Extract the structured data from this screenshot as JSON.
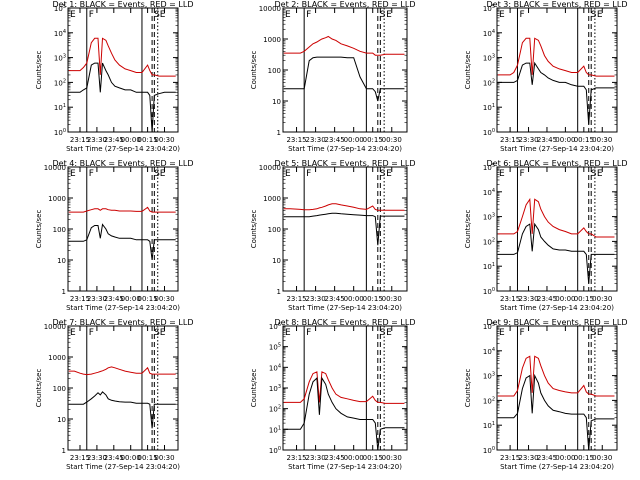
{
  "figure": {
    "x_axis_label": "Start Time (27-Sep-14 23:04:20)",
    "y_axis_label": "Counts/sec",
    "event_marks": [
      {
        "label": "E",
        "t": "23:04:20",
        "style": "solid"
      },
      {
        "label": "F",
        "t": "23:21",
        "style": "solid"
      },
      {
        "label": "",
        "t": "00:10",
        "style": "solid"
      },
      {
        "label": "S",
        "t": "00:19",
        "style": "dashed"
      },
      {
        "label": "",
        "t": "00:21",
        "style": "dashed"
      },
      {
        "label": "E",
        "t": "00:24",
        "style": "dotted"
      }
    ],
    "colors": {
      "events": "#000000",
      "lld": "#cc0000"
    }
  },
  "chart_data": [
    {
      "type": "line",
      "title": "Det 1: BLACK = Events, RED = LLD",
      "yscale": "log",
      "ylim": [
        1,
        100000
      ],
      "ytick_labels": [
        "10^0",
        "10^1",
        "10^2",
        "10^3",
        "10^4",
        "10^5"
      ],
      "xtick_labels": [
        "23:15",
        "23:30",
        "23:45",
        "00:00",
        "00:15",
        "00:30"
      ],
      "x": [
        "23:05",
        "23:10",
        "23:15",
        "23:18",
        "23:21",
        "23:25",
        "23:28",
        "23:31",
        "23:33",
        "23:35",
        "23:38",
        "23:40",
        "23:43",
        "23:46",
        "23:50",
        "23:55",
        "00:00",
        "00:05",
        "00:10",
        "00:15",
        "00:17",
        "00:19",
        "00:21",
        "00:25",
        "00:30",
        "00:40"
      ],
      "series": [
        {
          "name": "LLD",
          "values": [
            300,
            300,
            300,
            400,
            600,
            4000,
            6000,
            6000,
            200,
            6000,
            5000,
            3000,
            1500,
            800,
            500,
            350,
            300,
            250,
            250,
            500,
            300,
            200,
            200,
            180,
            180,
            180
          ]
        },
        {
          "name": "Events",
          "values": [
            40,
            40,
            40,
            50,
            60,
            500,
            600,
            600,
            40,
            600,
            300,
            200,
            100,
            70,
            60,
            50,
            50,
            40,
            40,
            40,
            30,
            1,
            30,
            35,
            40,
            40
          ]
        }
      ]
    },
    {
      "type": "line",
      "title": "Det 2: BLACK = Events, RED = LLD",
      "yscale": "log",
      "ylim": [
        1,
        10000
      ],
      "ytick_labels": [
        "1",
        "10",
        "100",
        "1000",
        "10000"
      ],
      "xtick_labels": [
        "23:15",
        "23:30",
        "23:45",
        "00:00",
        "00:15",
        "00:30"
      ],
      "x": [
        "23:05",
        "23:10",
        "23:15",
        "23:18",
        "23:21",
        "23:25",
        "23:28",
        "23:31",
        "23:33",
        "23:35",
        "23:38",
        "23:40",
        "23:43",
        "23:46",
        "23:50",
        "23:55",
        "00:00",
        "00:05",
        "00:10",
        "00:15",
        "00:17",
        "00:19",
        "00:21",
        "00:25",
        "00:30",
        "00:40"
      ],
      "series": [
        {
          "name": "LLD",
          "values": [
            350,
            350,
            350,
            350,
            400,
            550,
            700,
            800,
            900,
            1000,
            1100,
            1200,
            1000,
            900,
            700,
            600,
            500,
            400,
            350,
            350,
            300,
            300,
            300,
            320,
            320,
            320
          ]
        },
        {
          "name": "Events",
          "values": [
            25,
            25,
            25,
            25,
            25,
            200,
            250,
            260,
            260,
            260,
            260,
            260,
            260,
            260,
            260,
            250,
            250,
            60,
            25,
            25,
            20,
            10,
            25,
            25,
            25,
            25
          ]
        }
      ]
    },
    {
      "type": "line",
      "title": "Det 3: BLACK = Events, RED = LLD",
      "yscale": "log",
      "ylim": [
        1,
        100000
      ],
      "ytick_labels": [
        "10^0",
        "10^1",
        "10^2",
        "10^3",
        "10^4",
        "10^5"
      ],
      "xtick_labels": [
        "23:15",
        "23:30",
        "23:45",
        "00:00",
        "00:15",
        "00:30"
      ],
      "x": [
        "23:05",
        "23:10",
        "23:15",
        "23:18",
        "23:21",
        "23:25",
        "23:28",
        "23:31",
        "23:33",
        "23:35",
        "23:38",
        "23:40",
        "23:43",
        "23:46",
        "23:50",
        "23:55",
        "00:00",
        "00:05",
        "00:10",
        "00:15",
        "00:17",
        "00:19",
        "00:21",
        "00:25",
        "00:30",
        "00:40"
      ],
      "series": [
        {
          "name": "LLD",
          "values": [
            200,
            200,
            200,
            250,
            500,
            4000,
            6000,
            6000,
            200,
            6000,
            5000,
            3000,
            1200,
            700,
            450,
            350,
            300,
            250,
            250,
            450,
            250,
            200,
            200,
            180,
            180,
            180
          ]
        },
        {
          "name": "Events",
          "values": [
            100,
            100,
            100,
            100,
            120,
            500,
            600,
            600,
            80,
            600,
            350,
            250,
            200,
            150,
            120,
            100,
            100,
            80,
            70,
            70,
            50,
            2,
            50,
            60,
            60,
            60
          ]
        }
      ]
    },
    {
      "type": "line",
      "title": "Det 4: BLACK = Events, RED = LLD",
      "yscale": "log",
      "ylim": [
        1,
        10000
      ],
      "ytick_labels": [
        "1",
        "10",
        "100",
        "1000",
        "10000"
      ],
      "xtick_labels": [
        "23:15",
        "23:30",
        "23:45",
        "00:00",
        "00:15",
        "00:30"
      ],
      "x": [
        "23:05",
        "23:10",
        "23:15",
        "23:18",
        "23:21",
        "23:25",
        "23:28",
        "23:31",
        "23:33",
        "23:35",
        "23:38",
        "23:40",
        "23:43",
        "23:46",
        "23:50",
        "23:55",
        "00:00",
        "00:05",
        "00:10",
        "00:15",
        "00:17",
        "00:19",
        "00:21",
        "00:25",
        "00:30",
        "00:40"
      ],
      "series": [
        {
          "name": "LLD",
          "values": [
            350,
            350,
            350,
            350,
            380,
            420,
            450,
            450,
            400,
            450,
            450,
            420,
            400,
            400,
            380,
            380,
            380,
            370,
            370,
            500,
            380,
            350,
            350,
            350,
            350,
            350
          ]
        },
        {
          "name": "Events",
          "values": [
            40,
            40,
            40,
            40,
            45,
            110,
            130,
            130,
            50,
            140,
            100,
            70,
            60,
            55,
            50,
            50,
            50,
            45,
            45,
            45,
            40,
            10,
            45,
            45,
            45,
            45
          ]
        }
      ]
    },
    {
      "type": "line",
      "title": "Det 5: BLACK = Events, RED = LLD",
      "yscale": "log",
      "ylim": [
        1,
        10000
      ],
      "ytick_labels": [
        "1",
        "10",
        "100",
        "1000",
        "10000"
      ],
      "xtick_labels": [
        "23:15",
        "23:30",
        "23:45",
        "00:00",
        "00:15",
        "00:30"
      ],
      "x": [
        "23:05",
        "23:10",
        "23:15",
        "23:18",
        "23:21",
        "23:25",
        "23:28",
        "23:31",
        "23:33",
        "23:35",
        "23:38",
        "23:40",
        "23:43",
        "23:46",
        "23:50",
        "23:55",
        "00:00",
        "00:05",
        "00:10",
        "00:15",
        "00:17",
        "00:19",
        "00:21",
        "00:25",
        "00:30",
        "00:40"
      ],
      "series": [
        {
          "name": "LLD",
          "values": [
            450,
            450,
            440,
            430,
            420,
            420,
            430,
            450,
            480,
            500,
            550,
            600,
            650,
            650,
            600,
            550,
            500,
            450,
            430,
            550,
            430,
            400,
            400,
            400,
            400,
            400
          ]
        },
        {
          "name": "Events",
          "values": [
            250,
            250,
            250,
            250,
            250,
            250,
            260,
            270,
            280,
            290,
            300,
            310,
            320,
            320,
            310,
            300,
            290,
            280,
            270,
            270,
            250,
            30,
            260,
            260,
            260,
            260
          ]
        }
      ]
    },
    {
      "type": "line",
      "title": "Det 6: BLACK = Events, RED = LLD",
      "yscale": "log",
      "ylim": [
        1,
        100000
      ],
      "ytick_labels": [
        "10^0",
        "10^1",
        "10^2",
        "10^3",
        "10^4",
        "10^5"
      ],
      "xtick_labels": [
        "23:15",
        "23:30",
        "23:45",
        "00:00",
        "00:15",
        "00:30"
      ],
      "x": [
        "23:05",
        "23:10",
        "23:15",
        "23:18",
        "23:21",
        "23:25",
        "23:28",
        "23:31",
        "23:33",
        "23:35",
        "23:38",
        "23:40",
        "23:43",
        "23:46",
        "23:50",
        "23:55",
        "00:00",
        "00:05",
        "00:10",
        "00:15",
        "00:17",
        "00:19",
        "00:21",
        "00:25",
        "00:30",
        "00:40"
      ],
      "series": [
        {
          "name": "LLD",
          "values": [
            200,
            200,
            200,
            200,
            250,
            1000,
            3000,
            5000,
            200,
            5000,
            4000,
            2000,
            1000,
            600,
            400,
            300,
            250,
            200,
            200,
            350,
            250,
            200,
            200,
            150,
            150,
            150
          ]
        },
        {
          "name": "Events",
          "values": [
            30,
            30,
            30,
            30,
            35,
            200,
            400,
            500,
            40,
            500,
            300,
            150,
            100,
            70,
            50,
            45,
            45,
            40,
            40,
            40,
            30,
            2,
            30,
            30,
            30,
            30
          ]
        }
      ]
    },
    {
      "type": "line",
      "title": "Det 7: BLACK = Events, RED = LLD",
      "yscale": "log",
      "ylim": [
        1,
        10000
      ],
      "ytick_labels": [
        "1",
        "10",
        "100",
        "1000",
        "10000"
      ],
      "xtick_labels": [
        "23:15",
        "23:30",
        "23:45",
        "00:00",
        "00:15",
        "00:30"
      ],
      "x": [
        "23:05",
        "23:10",
        "23:15",
        "23:18",
        "23:21",
        "23:25",
        "23:28",
        "23:31",
        "23:33",
        "23:35",
        "23:38",
        "23:40",
        "23:43",
        "23:46",
        "23:50",
        "23:55",
        "00:00",
        "00:05",
        "00:10",
        "00:15",
        "00:17",
        "00:19",
        "00:21",
        "00:25",
        "00:30",
        "00:40"
      ],
      "series": [
        {
          "name": "LLD",
          "values": [
            350,
            350,
            300,
            280,
            270,
            280,
            300,
            320,
            340,
            360,
            400,
            450,
            480,
            450,
            400,
            350,
            320,
            300,
            300,
            450,
            300,
            280,
            280,
            280,
            280,
            280
          ]
        },
        {
          "name": "Events",
          "values": [
            30,
            30,
            30,
            30,
            35,
            45,
            55,
            70,
            60,
            75,
            60,
            45,
            40,
            38,
            36,
            35,
            35,
            32,
            32,
            32,
            30,
            5,
            30,
            30,
            30,
            30
          ]
        }
      ]
    },
    {
      "type": "line",
      "title": "Det 8: BLACK = Events, RED = LLD",
      "yscale": "log",
      "ylim": [
        1,
        1000000
      ],
      "ytick_labels": [
        "10^0",
        "10^1",
        "10^2",
        "10^3",
        "10^4",
        "10^5",
        "10^6"
      ],
      "xtick_labels": [
        "23:15",
        "23:30",
        "23:45",
        "00:00",
        "00:15",
        "00:30"
      ],
      "x": [
        "23:05",
        "23:10",
        "23:15",
        "23:18",
        "23:21",
        "23:25",
        "23:28",
        "23:31",
        "23:33",
        "23:35",
        "23:38",
        "23:40",
        "23:43",
        "23:46",
        "23:50",
        "23:55",
        "00:00",
        "00:05",
        "00:10",
        "00:15",
        "00:17",
        "00:19",
        "00:21",
        "00:25",
        "00:30",
        "00:40"
      ],
      "series": [
        {
          "name": "LLD",
          "values": [
            200,
            200,
            200,
            200,
            300,
            2000,
            5000,
            6000,
            200,
            6000,
            5000,
            2500,
            1000,
            500,
            350,
            300,
            250,
            220,
            220,
            400,
            250,
            200,
            200,
            180,
            180,
            180
          ]
        },
        {
          "name": "Events",
          "values": [
            10,
            10,
            10,
            10,
            20,
            500,
            2000,
            3000,
            50,
            3000,
            1500,
            500,
            200,
            100,
            60,
            40,
            35,
            30,
            30,
            30,
            20,
            1,
            10,
            12,
            12,
            12
          ]
        }
      ]
    },
    {
      "type": "line",
      "title": "Det 9: BLACK = Events, RED = LLD",
      "yscale": "log",
      "ylim": [
        1,
        100000
      ],
      "ytick_labels": [
        "10^0",
        "10^1",
        "10^2",
        "10^3",
        "10^4",
        "10^5"
      ],
      "xtick_labels": [
        "23:15",
        "23:30",
        "23:45",
        "00:00",
        "00:15",
        "00:30"
      ],
      "x": [
        "23:05",
        "23:10",
        "23:15",
        "23:18",
        "23:21",
        "23:25",
        "23:28",
        "23:31",
        "23:33",
        "23:35",
        "23:38",
        "23:40",
        "23:43",
        "23:46",
        "23:50",
        "23:55",
        "00:00",
        "00:05",
        "00:10",
        "00:15",
        "00:17",
        "00:19",
        "00:21",
        "00:25",
        "00:30",
        "00:40"
      ],
      "series": [
        {
          "name": "LLD",
          "values": [
            150,
            150,
            150,
            150,
            250,
            2000,
            5000,
            6000,
            200,
            6000,
            5000,
            2500,
            1000,
            500,
            300,
            250,
            220,
            200,
            200,
            400,
            220,
            180,
            180,
            150,
            150,
            150
          ]
        },
        {
          "name": "Events",
          "values": [
            20,
            20,
            20,
            20,
            30,
            300,
            800,
            1000,
            30,
            1000,
            500,
            200,
            100,
            60,
            40,
            35,
            30,
            28,
            28,
            28,
            20,
            1,
            15,
            18,
            18,
            18
          ]
        }
      ]
    }
  ]
}
